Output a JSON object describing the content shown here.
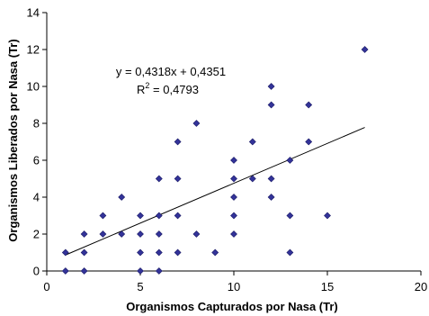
{
  "chart_data": {
    "type": "scatter",
    "title": "",
    "xlabel": "Organismos Capturados por Nasa (Tr)",
    "ylabel": "Organismos Liberados por Nasa (Tr)",
    "xlim": [
      0,
      20
    ],
    "ylim": [
      0,
      14
    ],
    "x_ticks": [
      "0",
      "5",
      "10",
      "15",
      "20"
    ],
    "y_ticks": [
      "0",
      "2",
      "4",
      "6",
      "8",
      "10",
      "12",
      "14"
    ],
    "grid": false,
    "legend": "none",
    "marker_color": "#333399",
    "series": [
      {
        "points": [
          [
            1,
            1
          ],
          [
            1,
            0
          ],
          [
            2,
            2
          ],
          [
            2,
            1
          ],
          [
            2,
            0
          ],
          [
            3,
            3
          ],
          [
            3,
            2
          ],
          [
            4,
            4
          ],
          [
            4,
            2
          ],
          [
            5,
            3
          ],
          [
            5,
            2
          ],
          [
            5,
            1
          ],
          [
            5,
            0
          ],
          [
            6,
            5
          ],
          [
            6,
            3
          ],
          [
            6,
            2
          ],
          [
            6,
            1
          ],
          [
            6,
            0
          ],
          [
            7,
            7
          ],
          [
            7,
            5
          ],
          [
            7,
            3
          ],
          [
            7,
            1
          ],
          [
            8,
            8
          ],
          [
            8,
            2
          ],
          [
            9,
            1
          ],
          [
            10,
            6
          ],
          [
            10,
            5
          ],
          [
            10,
            4
          ],
          [
            10,
            3
          ],
          [
            10,
            2
          ],
          [
            11,
            7
          ],
          [
            11,
            5
          ],
          [
            12,
            10
          ],
          [
            12,
            9
          ],
          [
            12,
            5
          ],
          [
            12,
            4
          ],
          [
            13,
            6
          ],
          [
            13,
            3
          ],
          [
            13,
            1
          ],
          [
            14,
            9
          ],
          [
            14,
            7
          ],
          [
            15,
            3
          ],
          [
            17,
            12
          ]
        ]
      }
    ],
    "trendline": {
      "slope": 0.4318,
      "intercept": 0.4351,
      "x_range": [
        1,
        17
      ],
      "equation": "y = 0,4318x + 0,4351",
      "r2_prefix": "R",
      "r2_exp": "2",
      "r2_value": " = 0,4793"
    }
  }
}
